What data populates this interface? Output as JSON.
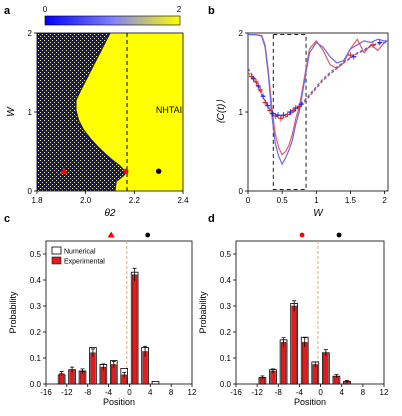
{
  "panels": {
    "a": "a",
    "b": "b",
    "c": "c",
    "d": "d"
  },
  "chart_data": [
    {
      "id": "a",
      "type": "heatmap",
      "xlabel": "θ2",
      "ylabel": "W",
      "xlim": [
        1.8,
        2.4
      ],
      "ylim": [
        0,
        2
      ],
      "xticks": [
        "1.8",
        "2.0",
        "2.2",
        "2.4"
      ],
      "yticks": [
        "0",
        "1",
        "2"
      ],
      "colorbar": {
        "min_label": "0",
        "max_label": "2",
        "colors": [
          "#0000ff",
          "#ffff00"
        ]
      },
      "region_label": "NHTAI",
      "dashed_line_x": 2.17,
      "boundary": {
        "x": [
          2.1,
          2.08,
          2.06,
          2.04,
          2.02,
          2.0,
          1.98,
          1.96,
          1.96,
          1.97,
          1.99,
          2.02,
          2.05,
          2.08,
          2.11,
          2.14,
          2.155,
          2.16,
          2.16,
          2.145,
          2.125,
          2.12
        ],
        "y": [
          2.0,
          1.88,
          1.76,
          1.64,
          1.52,
          1.4,
          1.28,
          1.15,
          1.02,
          0.9,
          0.78,
          0.66,
          0.56,
          0.47,
          0.39,
          0.32,
          0.27,
          0.24,
          0.21,
          0.17,
          0.12,
          0.0
        ]
      },
      "markers": [
        {
          "x": 1.91,
          "y": 0.25,
          "shape": "triangle",
          "color": "#ff0000"
        },
        {
          "x": 2.165,
          "y": 0.25,
          "shape": "circle",
          "color": "#ff0000"
        },
        {
          "x": 2.3,
          "y": 0.25,
          "shape": "circle",
          "color": "#000000"
        }
      ]
    },
    {
      "id": "b",
      "type": "line",
      "xlabel": "W",
      "ylabel": "⟨C(t)⟩",
      "xlim": [
        0,
        2.05
      ],
      "ylim": [
        0,
        2
      ],
      "xticks": [
        "0",
        "0.5",
        "1",
        "1.5",
        "2"
      ],
      "yticks": [
        "0",
        "1",
        "2"
      ],
      "dashed_box": {
        "x": [
          0.37,
          0.85
        ],
        "y": [
          0.02,
          1.98
        ]
      },
      "series": [
        {
          "color": "#e85a5a",
          "style": "solid",
          "x": [
            0,
            0.1,
            0.2,
            0.25,
            0.3,
            0.35,
            0.4,
            0.45,
            0.5,
            0.55,
            0.6,
            0.65,
            0.7,
            0.75,
            0.8,
            0.85,
            0.9,
            1.0,
            1.1,
            1.2,
            1.3,
            1.4,
            1.5,
            1.6,
            1.7,
            1.8,
            1.9,
            2.0,
            2.05
          ],
          "y": [
            1.98,
            1.98,
            1.97,
            1.85,
            1.5,
            1.05,
            0.72,
            0.55,
            0.46,
            0.5,
            0.58,
            0.72,
            0.92,
            1.05,
            1.3,
            1.55,
            1.8,
            1.9,
            1.78,
            1.6,
            1.55,
            1.62,
            1.8,
            1.92,
            1.75,
            1.85,
            1.78,
            1.88,
            1.9
          ]
        },
        {
          "color": "#6a6ae8",
          "style": "solid",
          "x": [
            0,
            0.1,
            0.2,
            0.25,
            0.3,
            0.35,
            0.4,
            0.45,
            0.5,
            0.55,
            0.6,
            0.65,
            0.7,
            0.75,
            0.8,
            0.85,
            0.9,
            1.0,
            1.1,
            1.2,
            1.3,
            1.4,
            1.5,
            1.6,
            1.7,
            1.8,
            1.9,
            2.0,
            2.05
          ],
          "y": [
            1.98,
            1.98,
            1.96,
            1.82,
            1.45,
            0.95,
            0.6,
            0.44,
            0.34,
            0.42,
            0.52,
            0.64,
            0.85,
            1.0,
            1.25,
            1.5,
            1.75,
            1.88,
            1.82,
            1.7,
            1.62,
            1.65,
            1.8,
            1.85,
            1.9,
            1.88,
            1.92,
            1.9,
            1.9
          ]
        },
        {
          "color": "#d23c3c",
          "style": "dashed",
          "x": [
            0,
            0.1,
            0.2,
            0.3,
            0.4,
            0.5,
            0.6,
            0.7,
            0.8,
            0.9,
            1.0,
            1.1,
            1.2,
            1.3,
            1.4,
            1.5,
            1.6,
            1.7,
            1.8,
            1.9,
            2.0,
            2.05
          ],
          "y": [
            1.55,
            1.42,
            1.25,
            1.05,
            0.95,
            0.92,
            0.96,
            1.02,
            1.1,
            1.2,
            1.3,
            1.4,
            1.48,
            1.55,
            1.62,
            1.68,
            1.74,
            1.78,
            1.83,
            1.86,
            1.88,
            1.88
          ]
        },
        {
          "color": "#6666cc",
          "style": "dashed",
          "x": [
            0,
            0.1,
            0.2,
            0.3,
            0.4,
            0.5,
            0.6,
            0.7,
            0.8,
            0.9,
            1.0,
            1.1,
            1.2,
            1.3,
            1.4,
            1.5,
            1.6,
            1.7,
            1.8,
            1.9,
            2.0,
            2.05
          ],
          "y": [
            1.5,
            1.4,
            1.22,
            1.05,
            0.97,
            0.95,
            0.98,
            1.04,
            1.12,
            1.22,
            1.32,
            1.42,
            1.5,
            1.57,
            1.63,
            1.69,
            1.75,
            1.79,
            1.84,
            1.87,
            1.88,
            1.88
          ]
        }
      ],
      "points": [
        {
          "color": "#e02020",
          "x": [
            0.05,
            0.12,
            0.18,
            0.25,
            0.32,
            0.4,
            0.48,
            0.58,
            0.66,
            0.75,
            1.5,
            1.83
          ],
          "y": [
            1.45,
            1.38,
            1.28,
            1.12,
            1.02,
            0.95,
            0.92,
            0.97,
            1.02,
            1.07,
            1.72,
            1.85
          ]
        },
        {
          "color": "#2020e0",
          "x": [
            0.08,
            0.15,
            0.22,
            0.29,
            0.36,
            0.44,
            0.52,
            0.62,
            0.7,
            0.78,
            1.55,
            1.93
          ],
          "y": [
            1.42,
            1.33,
            1.2,
            1.08,
            0.98,
            0.96,
            0.96,
            1.0,
            1.05,
            1.1,
            1.7,
            1.88
          ]
        }
      ]
    },
    {
      "id": "c",
      "type": "bar",
      "xlabel": "Position",
      "ylabel": "Probability",
      "xlim": [
        -16,
        12
      ],
      "ylim": [
        0,
        0.55
      ],
      "xticks": [
        "-16",
        "-12",
        "-8",
        "-4",
        "0",
        "4",
        "8",
        "12"
      ],
      "yticks": [
        "0.0",
        "0.1",
        "0.2",
        "0.3",
        "0.4",
        "0.5"
      ],
      "legend": {
        "position": "top-left",
        "entries": [
          "Numerical",
          "Experimental"
        ]
      },
      "dashed_line_x": -0.5,
      "markers": [
        {
          "x": -3.5,
          "y": 0.55,
          "shape": "triangle",
          "color": "#ff0000"
        },
        {
          "x": 3.5,
          "y": 0.55,
          "shape": "circle",
          "color": "#000000"
        }
      ],
      "categories": [
        -13,
        -11,
        -9,
        -7,
        -5,
        -3,
        -1,
        1,
        3,
        5
      ],
      "series": [
        {
          "name": "Numerical",
          "values": [
            0.035,
            0.055,
            0.05,
            0.14,
            0.075,
            0.09,
            0.06,
            0.43,
            0.14,
            0.01
          ]
        },
        {
          "name": "Experimental",
          "values": [
            0.04,
            0.055,
            0.048,
            0.12,
            0.065,
            0.075,
            0.035,
            0.42,
            0.125,
            0.0
          ]
        }
      ],
      "errors": [
        0.008,
        0.01,
        0.01,
        0.015,
        0.012,
        0.012,
        0.01,
        0.025,
        0.02,
        0.0
      ]
    },
    {
      "id": "d",
      "type": "bar",
      "xlabel": "Position",
      "ylabel": "Probability",
      "xlim": [
        -16,
        12
      ],
      "ylim": [
        0,
        0.55
      ],
      "xticks": [
        "-16",
        "-12",
        "-8",
        "-4",
        "0",
        "4",
        "8",
        "12"
      ],
      "yticks": [
        "0.0",
        "0.1",
        "0.2",
        "0.3",
        "0.4",
        "0.5"
      ],
      "dashed_line_x": -0.5,
      "markers": [
        {
          "x": -3.5,
          "y": 0.55,
          "shape": "circle",
          "color": "#ff0000"
        },
        {
          "x": 3.5,
          "y": 0.55,
          "shape": "circle",
          "color": "#000000"
        }
      ],
      "categories": [
        -11,
        -9,
        -7,
        -5,
        -3,
        -1,
        1,
        3,
        5
      ],
      "series": [
        {
          "name": "Numerical",
          "values": [
            0.025,
            0.055,
            0.17,
            0.31,
            0.18,
            0.085,
            0.12,
            0.03,
            0.01
          ]
        },
        {
          "name": "Experimental",
          "values": [
            0.025,
            0.05,
            0.16,
            0.3,
            0.16,
            0.075,
            0.12,
            0.03,
            0.01
          ]
        }
      ],
      "errors": [
        0.006,
        0.008,
        0.018,
        0.02,
        0.018,
        0.01,
        0.012,
        0.006,
        0.004
      ]
    }
  ]
}
